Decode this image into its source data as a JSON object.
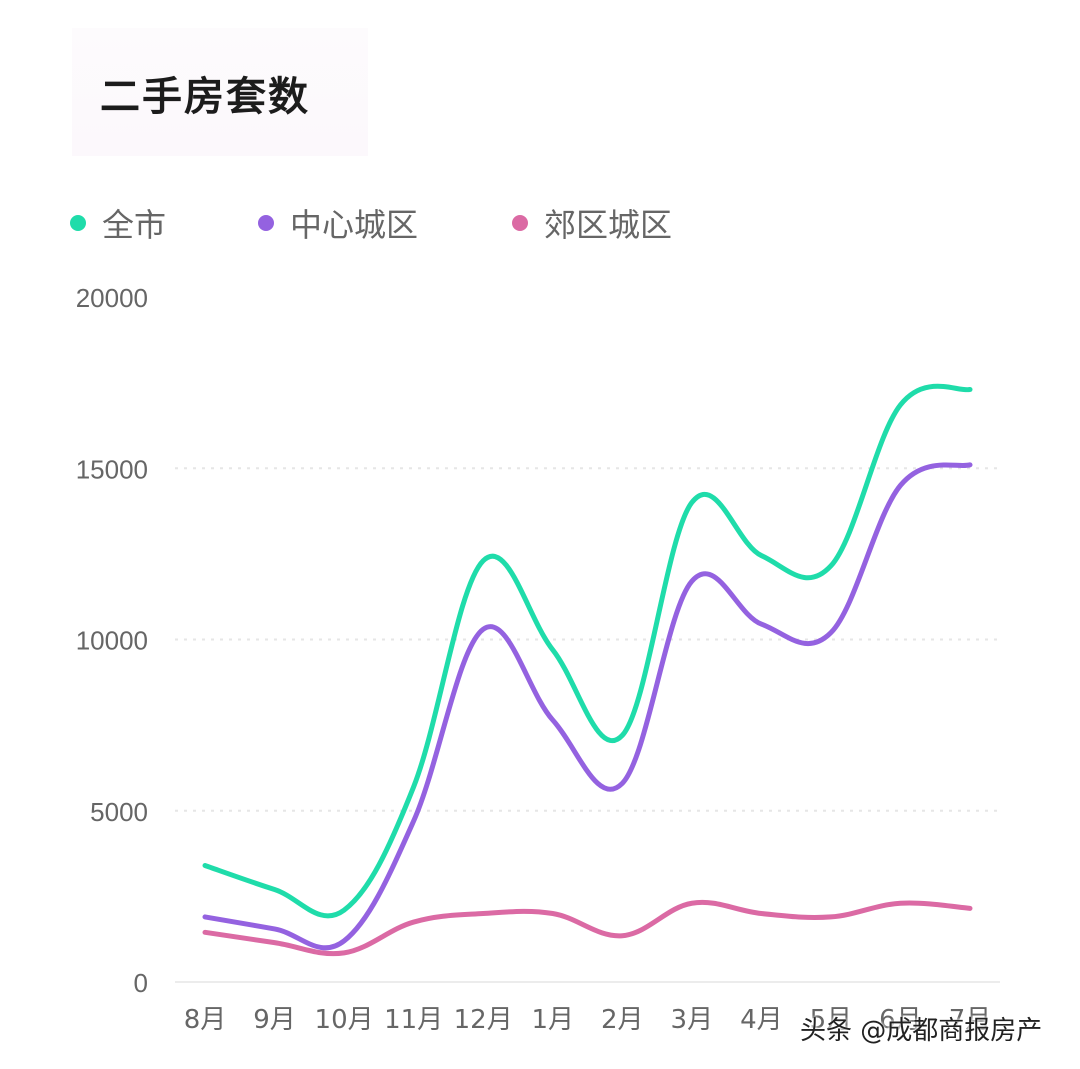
{
  "header": {
    "title": "二手房套数"
  },
  "legend": [
    {
      "label": "全市",
      "color": "#1fdcaa"
    },
    {
      "label": "中心城区",
      "color": "#9462e0"
    },
    {
      "label": "郊区城区",
      "color": "#db6aa4"
    }
  ],
  "watermark": "头条 @成都商报房产",
  "chart_data": {
    "type": "line",
    "title": "二手房套数",
    "xlabel": "",
    "ylabel": "",
    "categories": [
      "8月",
      "9月",
      "10月",
      "11月",
      "12月",
      "1月",
      "2月",
      "3月",
      "4月",
      "5月",
      "6月",
      "7月"
    ],
    "series": [
      {
        "name": "全市",
        "color": "#1fdcaa",
        "values": [
          3400,
          2700,
          2100,
          5700,
          12300,
          9700,
          7200,
          14000,
          12450,
          12150,
          16850,
          17300
        ]
      },
      {
        "name": "中心城区",
        "color": "#9462e0",
        "values": [
          1900,
          1550,
          1200,
          4700,
          10300,
          7650,
          5800,
          11700,
          10450,
          10200,
          14500,
          15100
        ]
      },
      {
        "name": "郊区城区",
        "color": "#db6aa4",
        "values": [
          1450,
          1150,
          850,
          1750,
          2000,
          2000,
          1350,
          2300,
          2000,
          1900,
          2300,
          2150
        ]
      }
    ],
    "yticks": [
      0,
      5000,
      10000,
      15000,
      20000
    ],
    "ylim": [
      0,
      20000
    ],
    "grid": true,
    "legend_position": "top-left",
    "smooth": true
  }
}
